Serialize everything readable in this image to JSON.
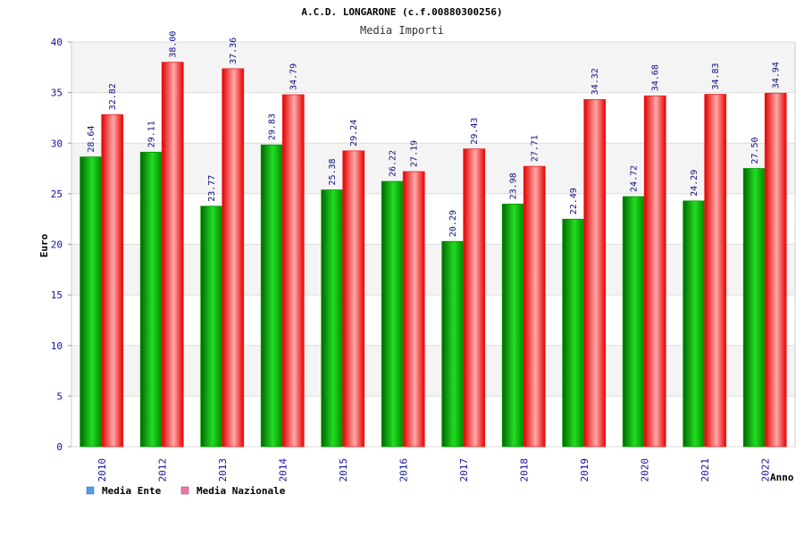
{
  "chart_data": {
    "type": "bar",
    "title": "A.C.D. LONGARONE (c.f.00880300256)",
    "subtitle": "Media Importi",
    "xlabel": "Anno",
    "ylabel": "Euro",
    "ylim": [
      0,
      40
    ],
    "yticks": [
      "0",
      "5",
      "10",
      "15",
      "20",
      "25",
      "30",
      "35",
      "40"
    ],
    "categories": [
      "2010",
      "2012",
      "2013",
      "2014",
      "2015",
      "2016",
      "2017",
      "2018",
      "2019",
      "2020",
      "2021",
      "2022"
    ],
    "series": [
      {
        "name": "Media Ente",
        "values": [
          28.64,
          29.11,
          23.77,
          29.83,
          25.38,
          26.22,
          20.29,
          23.98,
          22.49,
          24.72,
          24.29,
          27.5
        ],
        "labels": [
          "28.64",
          "29.11",
          "23.77",
          "29.83",
          "25.38",
          "26.22",
          "20.29",
          "23.98",
          "22.49",
          "24.72",
          "24.29",
          "27.50"
        ]
      },
      {
        "name": "Media Nazionale",
        "values": [
          32.82,
          38.0,
          37.36,
          34.79,
          29.24,
          27.19,
          29.43,
          27.71,
          34.32,
          34.68,
          34.83,
          34.94
        ],
        "labels": [
          "32.82",
          "38.00",
          "37.36",
          "34.79",
          "29.24",
          "27.19",
          "29.43",
          "27.71",
          "34.32",
          "34.68",
          "34.83",
          "34.94"
        ]
      }
    ],
    "legend_position": "bottom-left",
    "grid": true
  },
  "colors": {
    "ente_dark": "#006600",
    "ente_light": "#22dd22",
    "naz_dark": "#e00000",
    "naz_light": "#ffaaaa",
    "legend_ente": "#5599ee",
    "legend_naz": "#ee77aa",
    "band": "#f4f4f4",
    "grid": "#dddddd"
  }
}
